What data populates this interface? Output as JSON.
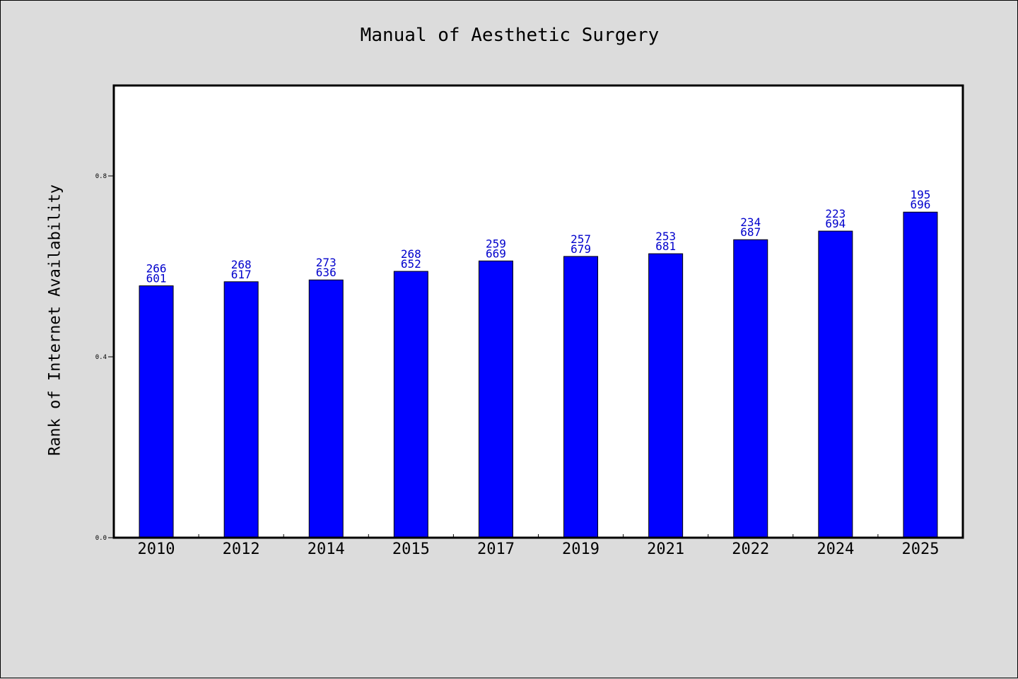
{
  "chart_data": {
    "type": "bar",
    "title": "Manual of Aesthetic Surgery",
    "xlabel": "",
    "ylabel": "Rank of Internet Availability",
    "categories": [
      "2010",
      "2012",
      "2014",
      "2015",
      "2017",
      "2019",
      "2021",
      "2022",
      "2024",
      "2025"
    ],
    "values": [
      0.557,
      0.566,
      0.57,
      0.589,
      0.612,
      0.622,
      0.628,
      0.659,
      0.678,
      0.72
    ],
    "labels_top": [
      "266",
      "268",
      "273",
      "268",
      "259",
      "257",
      "253",
      "234",
      "223",
      "195"
    ],
    "labels_bottom": [
      "601",
      "617",
      "636",
      "652",
      "669",
      "679",
      "681",
      "687",
      "694",
      "696"
    ],
    "yticks": [
      0.0,
      0.4,
      0.8
    ],
    "ytick_labels": [
      "0.0",
      "0.4",
      "0.8"
    ],
    "ylim": [
      0,
      1.0
    ],
    "grid": false,
    "legend": "none",
    "bar_color": "#0000ff",
    "label_color": "#0000cc"
  }
}
